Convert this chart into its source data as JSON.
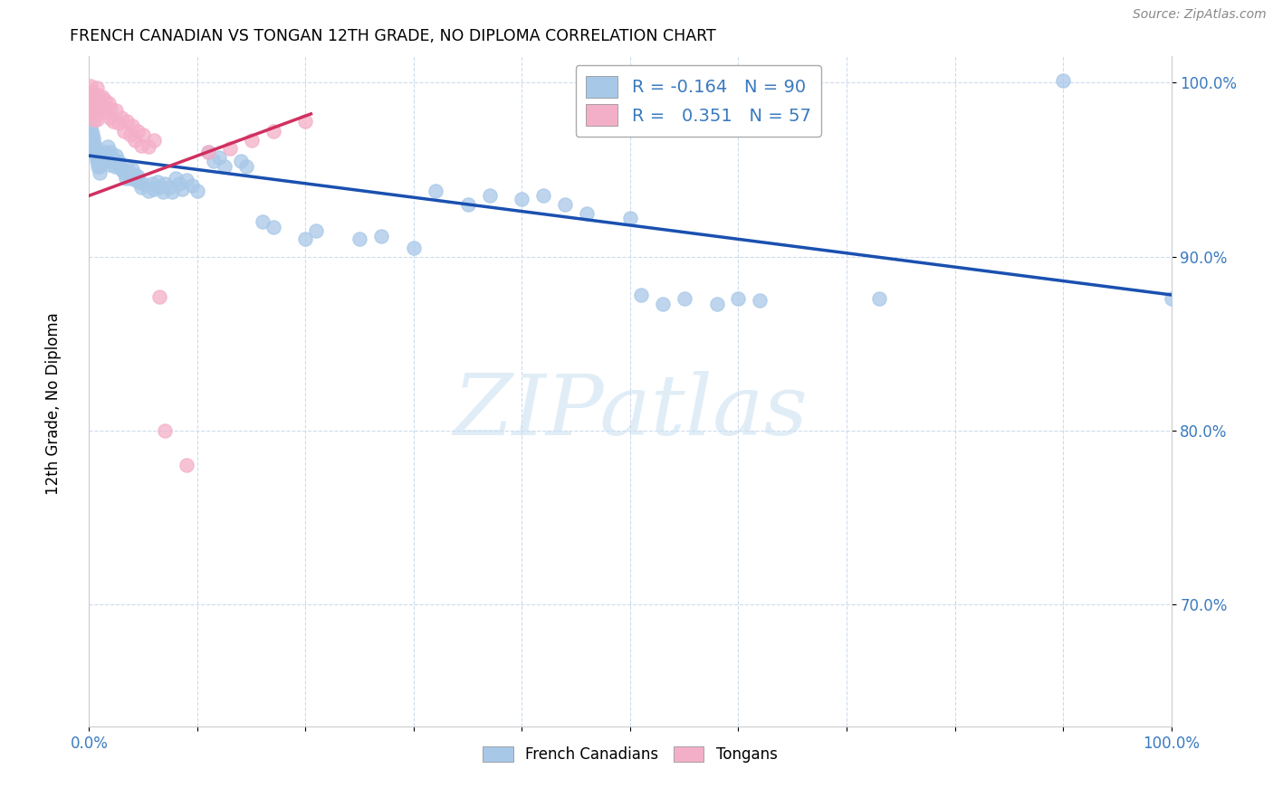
{
  "title": "FRENCH CANADIAN VS TONGAN 12TH GRADE, NO DIPLOMA CORRELATION CHART",
  "source": "Source: ZipAtlas.com",
  "ylabel": "12th Grade, No Diploma",
  "blue_color": "#a8c8e8",
  "pink_color": "#f4afc8",
  "trend_blue": "#1a50b0",
  "trend_pink": "#d03060",
  "xlim": [
    0.0,
    1.0
  ],
  "ylim": [
    0.63,
    1.015
  ],
  "yticks": [
    0.7,
    0.8,
    0.9,
    1.0
  ],
  "ytick_labels": [
    "70.0%",
    "80.0%",
    "90.0%",
    "100.0%"
  ],
  "blue_scatter": [
    [
      0.001,
      0.975
    ],
    [
      0.002,
      0.972
    ],
    [
      0.002,
      0.968
    ],
    [
      0.003,
      0.97
    ],
    [
      0.003,
      0.965
    ],
    [
      0.004,
      0.968
    ],
    [
      0.004,
      0.963
    ],
    [
      0.005,
      0.965
    ],
    [
      0.005,
      0.96
    ],
    [
      0.006,
      0.962
    ],
    [
      0.006,
      0.958
    ],
    [
      0.007,
      0.96
    ],
    [
      0.007,
      0.955
    ],
    [
      0.008,
      0.957
    ],
    [
      0.008,
      0.952
    ],
    [
      0.009,
      0.955
    ],
    [
      0.01,
      0.952
    ],
    [
      0.01,
      0.948
    ],
    [
      0.015,
      0.96
    ],
    [
      0.016,
      0.955
    ],
    [
      0.017,
      0.963
    ],
    [
      0.018,
      0.957
    ],
    [
      0.019,
      0.953
    ],
    [
      0.02,
      0.96
    ],
    [
      0.022,
      0.956
    ],
    [
      0.024,
      0.952
    ],
    [
      0.025,
      0.958
    ],
    [
      0.027,
      0.955
    ],
    [
      0.028,
      0.952
    ],
    [
      0.03,
      0.95
    ],
    [
      0.032,
      0.948
    ],
    [
      0.034,
      0.945
    ],
    [
      0.035,
      0.952
    ],
    [
      0.037,
      0.948
    ],
    [
      0.038,
      0.945
    ],
    [
      0.04,
      0.95
    ],
    [
      0.042,
      0.947
    ],
    [
      0.043,
      0.944
    ],
    [
      0.045,
      0.946
    ],
    [
      0.046,
      0.943
    ],
    [
      0.048,
      0.94
    ],
    [
      0.05,
      0.942
    ],
    [
      0.055,
      0.938
    ],
    [
      0.058,
      0.942
    ],
    [
      0.06,
      0.939
    ],
    [
      0.063,
      0.943
    ],
    [
      0.065,
      0.94
    ],
    [
      0.068,
      0.937
    ],
    [
      0.07,
      0.942
    ],
    [
      0.074,
      0.94
    ],
    [
      0.077,
      0.937
    ],
    [
      0.08,
      0.945
    ],
    [
      0.083,
      0.942
    ],
    [
      0.086,
      0.939
    ],
    [
      0.09,
      0.944
    ],
    [
      0.095,
      0.941
    ],
    [
      0.1,
      0.938
    ],
    [
      0.11,
      0.96
    ],
    [
      0.115,
      0.955
    ],
    [
      0.12,
      0.957
    ],
    [
      0.125,
      0.952
    ],
    [
      0.14,
      0.955
    ],
    [
      0.145,
      0.952
    ],
    [
      0.16,
      0.92
    ],
    [
      0.17,
      0.917
    ],
    [
      0.2,
      0.91
    ],
    [
      0.21,
      0.915
    ],
    [
      0.25,
      0.91
    ],
    [
      0.27,
      0.912
    ],
    [
      0.3,
      0.905
    ],
    [
      0.32,
      0.938
    ],
    [
      0.35,
      0.93
    ],
    [
      0.37,
      0.935
    ],
    [
      0.4,
      0.933
    ],
    [
      0.42,
      0.935
    ],
    [
      0.44,
      0.93
    ],
    [
      0.46,
      0.925
    ],
    [
      0.5,
      0.922
    ],
    [
      0.51,
      0.878
    ],
    [
      0.53,
      0.873
    ],
    [
      0.55,
      0.876
    ],
    [
      0.58,
      0.873
    ],
    [
      0.6,
      0.876
    ],
    [
      0.62,
      0.875
    ],
    [
      0.73,
      0.876
    ],
    [
      0.9,
      1.001
    ],
    [
      1.0,
      0.876
    ]
  ],
  "pink_scatter": [
    [
      0.001,
      0.998
    ],
    [
      0.002,
      0.995
    ],
    [
      0.002,
      0.99
    ],
    [
      0.003,
      0.992
    ],
    [
      0.003,
      0.987
    ],
    [
      0.003,
      0.983
    ],
    [
      0.004,
      0.989
    ],
    [
      0.004,
      0.984
    ],
    [
      0.005,
      0.993
    ],
    [
      0.005,
      0.986
    ],
    [
      0.005,
      0.979
    ],
    [
      0.006,
      0.99
    ],
    [
      0.006,
      0.982
    ],
    [
      0.007,
      0.997
    ],
    [
      0.007,
      0.988
    ],
    [
      0.007,
      0.979
    ],
    [
      0.008,
      0.993
    ],
    [
      0.008,
      0.984
    ],
    [
      0.009,
      0.99
    ],
    [
      0.01,
      0.987
    ],
    [
      0.012,
      0.992
    ],
    [
      0.013,
      0.985
    ],
    [
      0.015,
      0.99
    ],
    [
      0.016,
      0.983
    ],
    [
      0.018,
      0.988
    ],
    [
      0.019,
      0.98
    ],
    [
      0.02,
      0.985
    ],
    [
      0.022,
      0.978
    ],
    [
      0.025,
      0.984
    ],
    [
      0.027,
      0.977
    ],
    [
      0.03,
      0.98
    ],
    [
      0.032,
      0.972
    ],
    [
      0.035,
      0.978
    ],
    [
      0.038,
      0.97
    ],
    [
      0.04,
      0.975
    ],
    [
      0.042,
      0.967
    ],
    [
      0.045,
      0.972
    ],
    [
      0.048,
      0.964
    ],
    [
      0.05,
      0.97
    ],
    [
      0.055,
      0.963
    ],
    [
      0.06,
      0.967
    ],
    [
      0.065,
      0.877
    ],
    [
      0.07,
      0.8
    ],
    [
      0.09,
      0.78
    ],
    [
      0.11,
      0.96
    ],
    [
      0.13,
      0.962
    ],
    [
      0.15,
      0.967
    ],
    [
      0.17,
      0.972
    ],
    [
      0.2,
      0.978
    ]
  ],
  "blue_trend_x": [
    0.0,
    1.0
  ],
  "blue_trend_y": [
    0.958,
    0.878
  ],
  "pink_trend_x": [
    0.0,
    0.205
  ],
  "pink_trend_y": [
    0.935,
    0.982
  ],
  "legend1_label1": "R = -0.164   N = 90",
  "legend1_label2": "R =   0.351   N = 57",
  "legend2_label1": "French Canadians",
  "legend2_label2": "Tongans",
  "watermark": "ZIPatlas"
}
